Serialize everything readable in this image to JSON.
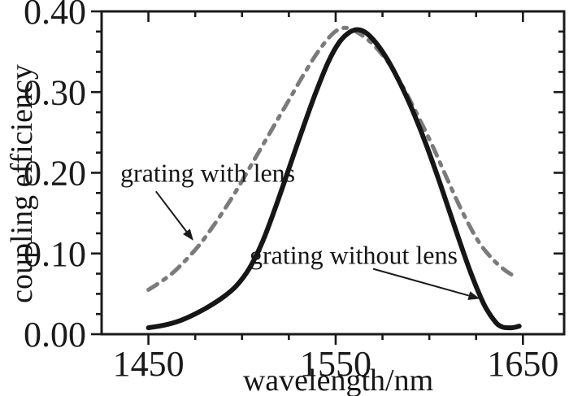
{
  "chart_data": {
    "type": "line",
    "title": "",
    "xlabel": "wavelength/nm",
    "ylabel": "coupling efficiency",
    "xlim": [
      1425,
      1672
    ],
    "ylim": [
      0.0,
      0.4
    ],
    "grid": false,
    "legend_position": "none (inline annotations with arrows)",
    "x_major_ticks": [
      1450,
      1550,
      1650
    ],
    "x_minor_step": 25,
    "y_major_ticks": [
      0.0,
      0.1,
      0.2,
      0.3,
      0.4
    ],
    "y_minor_step": 0.025,
    "series": [
      {
        "name": "grating with lens",
        "style": "dash-dot",
        "color": "#7b7b7b",
        "points": [
          [
            1450,
            0.055
          ],
          [
            1456,
            0.064
          ],
          [
            1463,
            0.076
          ],
          [
            1470,
            0.092
          ],
          [
            1477,
            0.11
          ],
          [
            1484,
            0.132
          ],
          [
            1491,
            0.156
          ],
          [
            1498,
            0.182
          ],
          [
            1505,
            0.21
          ],
          [
            1512,
            0.238
          ],
          [
            1519,
            0.266
          ],
          [
            1526,
            0.294
          ],
          [
            1533,
            0.322
          ],
          [
            1540,
            0.348
          ],
          [
            1547,
            0.369
          ],
          [
            1552,
            0.378
          ],
          [
            1557,
            0.379
          ],
          [
            1563,
            0.372
          ],
          [
            1570,
            0.359
          ],
          [
            1578,
            0.337
          ],
          [
            1586,
            0.306
          ],
          [
            1594,
            0.27
          ],
          [
            1602,
            0.232
          ],
          [
            1610,
            0.19
          ],
          [
            1618,
            0.15
          ],
          [
            1626,
            0.116
          ],
          [
            1633,
            0.095
          ],
          [
            1640,
            0.08
          ],
          [
            1646,
            0.071
          ]
        ]
      },
      {
        "name": "grating without lens",
        "style": "solid",
        "color": "#161616",
        "points": [
          [
            1450,
            0.008
          ],
          [
            1458,
            0.011
          ],
          [
            1466,
            0.016
          ],
          [
            1474,
            0.024
          ],
          [
            1482,
            0.034
          ],
          [
            1490,
            0.046
          ],
          [
            1497,
            0.06
          ],
          [
            1504,
            0.082
          ],
          [
            1511,
            0.115
          ],
          [
            1518,
            0.158
          ],
          [
            1525,
            0.205
          ],
          [
            1532,
            0.252
          ],
          [
            1539,
            0.297
          ],
          [
            1546,
            0.337
          ],
          [
            1552,
            0.362
          ],
          [
            1558,
            0.375
          ],
          [
            1563,
            0.377
          ],
          [
            1568,
            0.37
          ],
          [
            1575,
            0.35
          ],
          [
            1582,
            0.322
          ],
          [
            1590,
            0.283
          ],
          [
            1598,
            0.237
          ],
          [
            1606,
            0.185
          ],
          [
            1614,
            0.13
          ],
          [
            1622,
            0.077
          ],
          [
            1629,
            0.038
          ],
          [
            1635,
            0.016
          ],
          [
            1639,
            0.009
          ],
          [
            1644,
            0.008
          ],
          [
            1648,
            0.01
          ]
        ]
      }
    ],
    "annotations": [
      {
        "text": "grating with lens",
        "text_anchor": {
          "nm": 1435,
          "eff": 0.2
        },
        "arrow_from": {
          "nm": 1454,
          "eff": 0.177
        },
        "arrow_to": {
          "nm": 1474,
          "eff": 0.116
        }
      },
      {
        "text": "grating without lens",
        "text_anchor": {
          "nm": 1504,
          "eff": 0.098
        },
        "arrow_from": {
          "nm": 1570,
          "eff": 0.081
        },
        "arrow_to": {
          "nm": 1627,
          "eff": 0.044
        }
      }
    ],
    "colors": {
      "axis": "#1a1a1a",
      "background": "#ffffff"
    }
  }
}
